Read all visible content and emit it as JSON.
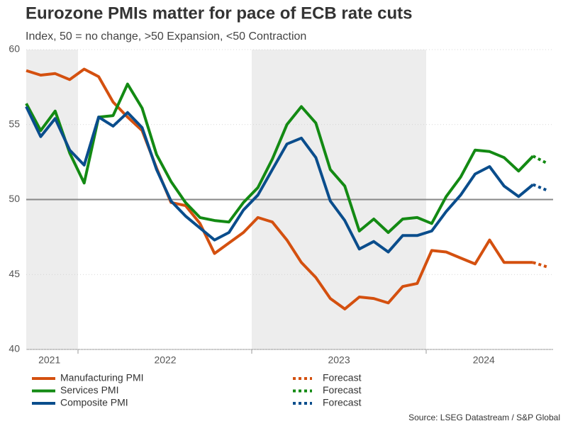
{
  "chart_data": {
    "type": "line",
    "title": "Eurozone PMIs matter for pace of ECB rate cuts",
    "subtitle": "Index, 50 = no change, >50 Expansion, <50 Contraction",
    "source": "Source: LSEG Datastream / S&P Global",
    "categories": [
      null,
      null,
      "2021",
      null,
      null,
      null,
      null,
      null,
      null,
      null,
      "2022",
      null,
      null,
      null,
      null,
      null,
      null,
      null,
      null,
      null,
      null,
      null,
      "2023",
      null,
      null,
      null,
      null,
      null,
      null,
      null,
      null,
      null,
      "2024",
      null,
      null,
      null,
      null
    ],
    "ylim": [
      40,
      60
    ],
    "yticks": [
      40,
      45,
      50,
      55,
      60
    ],
    "reference_line": 50,
    "series": [
      {
        "name": "Manufacturing PMI",
        "color": "#d4500f",
        "dashed": false,
        "values": [
          58.6,
          58.3,
          58.4,
          58.0,
          58.7,
          58.2,
          56.5,
          55.5,
          54.6,
          52.1,
          49.8,
          49.6,
          48.4,
          46.4,
          47.1,
          47.8,
          48.8,
          48.5,
          47.3,
          45.8,
          44.8,
          43.4,
          42.7,
          43.5,
          43.4,
          43.1,
          44.2,
          44.4,
          46.6,
          46.5,
          46.1,
          45.7,
          47.3,
          45.8,
          45.8,
          45.8,
          null
        ]
      },
      {
        "name": "Services PMI",
        "color": "#138a13",
        "dashed": false,
        "values": [
          56.4,
          54.6,
          55.9,
          53.1,
          51.1,
          55.5,
          55.6,
          57.7,
          56.1,
          53.0,
          51.2,
          49.8,
          48.8,
          48.6,
          48.5,
          49.8,
          50.8,
          52.7,
          55.0,
          56.2,
          55.1,
          52.0,
          50.9,
          47.9,
          48.7,
          47.8,
          48.7,
          48.8,
          48.4,
          50.2,
          51.5,
          53.3,
          53.2,
          52.8,
          51.9,
          52.9,
          null
        ]
      },
      {
        "name": "Composite PMI",
        "color": "#0a4d8c",
        "dashed": false,
        "values": [
          56.2,
          54.2,
          55.4,
          53.3,
          52.3,
          55.5,
          54.9,
          55.8,
          54.8,
          52.0,
          49.9,
          48.9,
          48.1,
          47.3,
          47.8,
          49.3,
          50.3,
          52.0,
          53.7,
          54.1,
          52.8,
          49.9,
          48.6,
          46.7,
          47.2,
          46.5,
          47.6,
          47.6,
          47.9,
          49.2,
          50.3,
          51.7,
          52.2,
          50.9,
          50.2,
          51.0,
          null
        ]
      },
      {
        "name": "Forecast",
        "color": "#d4500f",
        "dashed": true,
        "values": [
          null,
          null,
          null,
          null,
          null,
          null,
          null,
          null,
          null,
          null,
          null,
          null,
          null,
          null,
          null,
          null,
          null,
          null,
          null,
          null,
          null,
          null,
          null,
          null,
          null,
          null,
          null,
          null,
          null,
          null,
          null,
          null,
          null,
          null,
          null,
          45.8,
          45.5
        ]
      },
      {
        "name": "Forecast",
        "color": "#138a13",
        "dashed": true,
        "values": [
          null,
          null,
          null,
          null,
          null,
          null,
          null,
          null,
          null,
          null,
          null,
          null,
          null,
          null,
          null,
          null,
          null,
          null,
          null,
          null,
          null,
          null,
          null,
          null,
          null,
          null,
          null,
          null,
          null,
          null,
          null,
          null,
          null,
          null,
          null,
          52.9,
          52.4
        ]
      },
      {
        "name": "Forecast",
        "color": "#0a4d8c",
        "dashed": true,
        "values": [
          null,
          null,
          null,
          null,
          null,
          null,
          null,
          null,
          null,
          null,
          null,
          null,
          null,
          null,
          null,
          null,
          null,
          null,
          null,
          null,
          null,
          null,
          null,
          null,
          null,
          null,
          null,
          null,
          null,
          null,
          null,
          null,
          null,
          null,
          null,
          51.0,
          50.6
        ]
      }
    ]
  }
}
